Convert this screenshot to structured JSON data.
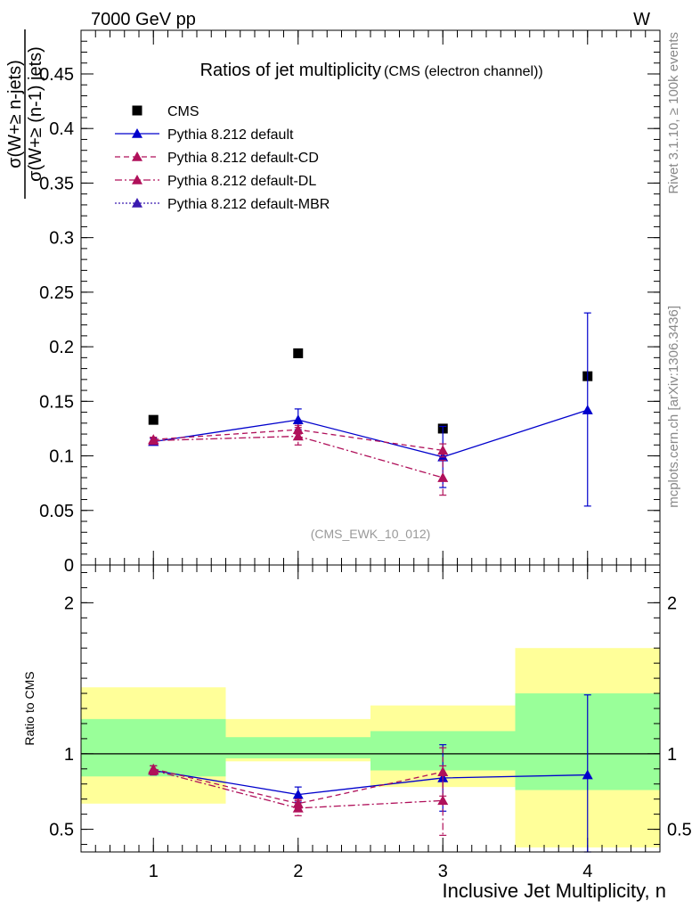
{
  "header": {
    "energy_label": "7000 GeV pp",
    "process_label": "W"
  },
  "side_labels": {
    "rivet": "Rivet 3.1.10, ≥ 100k events",
    "mcplots": "mcplots.cern.ch [arXiv:1306.3436]"
  },
  "chart_data": [
    {
      "type": "scatter",
      "panel": "main",
      "title": "Ratios of jet multiplicity",
      "subtitle": "(CMS (electron channel))",
      "watermark": "(CMS_EWK_10_012)",
      "ylabel_numerator": "σ(W+≥ n-jets)",
      "ylabel_denominator": "σ(W+≥ (n-1) jets)",
      "xlim": [
        0.5,
        4.5
      ],
      "ylim": [
        0,
        0.49
      ],
      "x_ticks": [
        1,
        2,
        3,
        4
      ],
      "y_ticks": [
        0,
        0.05,
        0.1,
        0.15,
        0.2,
        0.25,
        0.3,
        0.35,
        0.4,
        0.45
      ],
      "y_tick_labels": [
        "0",
        "0.05",
        "0.1",
        "0.15",
        "0.2",
        "0.25",
        "0.3",
        "0.35",
        "0.4",
        "0.45"
      ],
      "legend_position": "top-left",
      "x": [
        1,
        2,
        3,
        4
      ],
      "series": [
        {
          "name": "CMS",
          "style": "data",
          "color": "#000000",
          "values": [
            0.133,
            0.194,
            0.125,
            0.173
          ],
          "err_lo": [
            0,
            0,
            0,
            0
          ],
          "err_hi": [
            0,
            0,
            0,
            0
          ]
        },
        {
          "name": "Pythia 8.212 default",
          "style": "solid",
          "color": "#0000cc",
          "values": [
            0.113,
            0.133,
            0.099,
            0.142
          ],
          "err_lo": [
            0.003,
            0.009,
            0.028,
            0.088
          ],
          "err_hi": [
            0.003,
            0.01,
            0.028,
            0.089
          ]
        },
        {
          "name": "Pythia 8.212 default-CD",
          "style": "dashed",
          "color": "#b0105a",
          "values": [
            0.115,
            0.124,
            0.105,
            null
          ],
          "err_lo": [
            0.002,
            0.004,
            0.006,
            0
          ],
          "err_hi": [
            0.002,
            0.004,
            0.006,
            0
          ]
        },
        {
          "name": "Pythia 8.212 default-DL",
          "style": "dashdot",
          "color": "#b0105a",
          "values": [
            0.114,
            0.118,
            0.08,
            null
          ],
          "err_lo": [
            0.003,
            0.008,
            0.016,
            0
          ],
          "err_hi": [
            0.003,
            0.008,
            0.016,
            0
          ]
        },
        {
          "name": "Pythia 8.212 default-MBR",
          "style": "dotted",
          "color": "#3a1ab0",
          "values": [
            null,
            null,
            null,
            null
          ],
          "err_lo": [
            0,
            0,
            0,
            0
          ],
          "err_hi": [
            0,
            0,
            0,
            0
          ]
        }
      ]
    },
    {
      "type": "scatter",
      "panel": "ratio",
      "ylabel": "Ratio to CMS",
      "xlabel": "Inclusive Jet Multiplicity, n",
      "xlim": [
        0.5,
        4.5
      ],
      "ylim": [
        0.35,
        2.25
      ],
      "x_ticks": [
        1,
        2,
        3,
        4
      ],
      "y_ticks": [
        0.5,
        1,
        2
      ],
      "y_tick_labels": [
        "0.5",
        "1",
        "2"
      ],
      "reference_line": 1,
      "bands": [
        {
          "x0": 0.5,
          "x1": 1.5,
          "yellow": [
            0.67,
            1.44
          ],
          "green": [
            0.85,
            1.23
          ]
        },
        {
          "x0": 1.5,
          "x1": 2.5,
          "yellow": [
            0.95,
            1.23
          ],
          "green": [
            0.97,
            1.11
          ]
        },
        {
          "x0": 2.5,
          "x1": 3.5,
          "yellow": [
            0.78,
            1.32
          ],
          "green": [
            0.89,
            1.15
          ]
        },
        {
          "x0": 3.5,
          "x1": 4.5,
          "yellow": [
            0.38,
            1.7
          ],
          "green": [
            0.76,
            1.4
          ]
        }
      ],
      "x": [
        1,
        2,
        3,
        4
      ],
      "series": [
        {
          "name": "Pythia 8.212 default",
          "style": "solid",
          "color": "#0000cc",
          "values": [
            0.89,
            0.73,
            0.84,
            0.86
          ],
          "err_lo": [
            0.03,
            0.05,
            0.22,
            0.51
          ],
          "err_hi": [
            0.03,
            0.05,
            0.22,
            0.53
          ]
        },
        {
          "name": "Pythia 8.212 default-CD",
          "style": "dashed",
          "color": "#b0105a",
          "values": [
            0.9,
            0.67,
            0.88,
            null
          ],
          "err_lo": [
            0.02,
            0.03,
            0.16,
            0
          ],
          "err_hi": [
            0.02,
            0.03,
            0.16,
            0
          ]
        },
        {
          "name": "Pythia 8.212 default-DL",
          "style": "dashdot",
          "color": "#b0105a",
          "values": [
            0.89,
            0.64,
            0.69,
            null
          ],
          "err_lo": [
            0.03,
            0.05,
            0.23,
            0
          ],
          "err_hi": [
            0.03,
            0.05,
            0.23,
            0
          ]
        }
      ]
    }
  ]
}
